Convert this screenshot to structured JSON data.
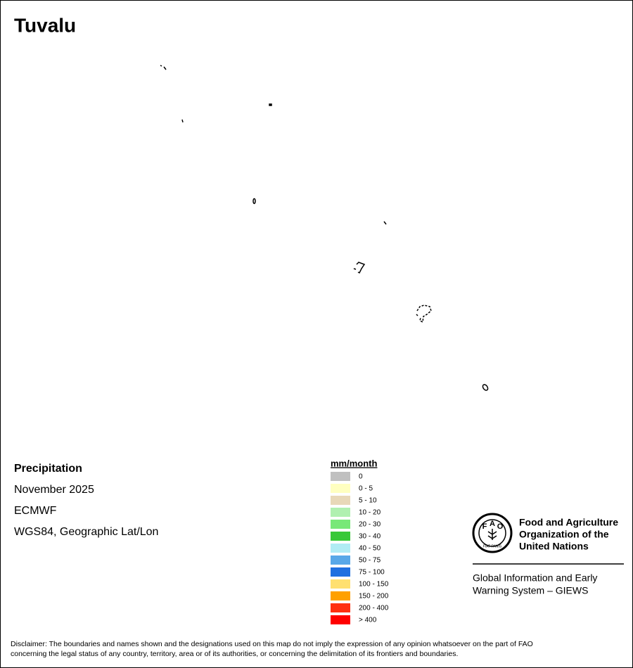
{
  "title": "Tuvalu",
  "info": {
    "variable": "Precipitation",
    "period": "November 2025",
    "source": "ECMWF",
    "projection": "WGS84, Geographic Lat/Lon"
  },
  "legend": {
    "unit": "mm/month",
    "items": [
      {
        "label": "0",
        "color": "#c0c0c0"
      },
      {
        "label": "0 - 5",
        "color": "#ffffc0"
      },
      {
        "label": "5 - 10",
        "color": "#e8d8b8"
      },
      {
        "label": "10 - 20",
        "color": "#b0f0b0"
      },
      {
        "label": "20 - 30",
        "color": "#78e878"
      },
      {
        "label": "30 - 40",
        "color": "#38c838"
      },
      {
        "label": "40 - 50",
        "color": "#b0ecf4"
      },
      {
        "label": "50 - 75",
        "color": "#58a8e8"
      },
      {
        "label": "75 - 100",
        "color": "#2070e0"
      },
      {
        "label": "100 - 150",
        "color": "#ffe070"
      },
      {
        "label": "150 - 200",
        "color": "#ffa000"
      },
      {
        "label": "200 - 400",
        "color": "#ff3010"
      },
      {
        "label": "> 400",
        "color": "#ff0000"
      }
    ]
  },
  "logo": {
    "letters": [
      "F",
      "A",
      "O"
    ],
    "motto": "FIAT PANIS",
    "org_lines": [
      "Food and Agriculture",
      "Organization of the",
      "United Nations"
    ],
    "system_lines": [
      "Global Information and Early",
      "Warning System – GIEWS"
    ]
  },
  "disclaimer": [
    "Disclaimer: The boundaries and names shown and the designations used on this map do not imply the expression of any opinion whatsoever on the part of FAO",
    "concerning the legal status of any country, territory, area or of its authorities, or concerning the delimitation of its frontiers and boundaries."
  ]
}
